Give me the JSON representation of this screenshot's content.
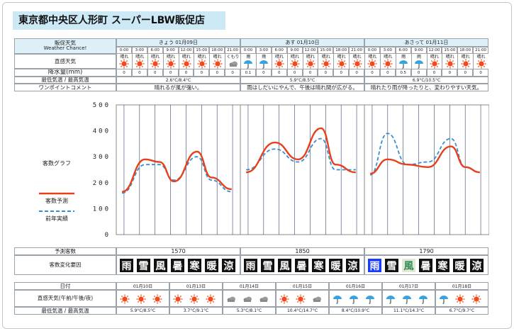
{
  "store_title": "東京都中央区人形町 スーパーLBW販促店",
  "labels": {
    "forecast": "販促天気",
    "forecast_en": "Weather Chance!",
    "sensible": "直感天気",
    "precip": "降水量(mm)",
    "temp": "最低気温 / 最高気温",
    "onepoint": "ワンポイントコメント",
    "visitors_graph": "客数グラフ",
    "legend_forecast": "客数予測",
    "legend_prev": "前年実績",
    "predicted": "予測客数",
    "factors": "客数変化要因",
    "date": "日付",
    "weekly_sensible": "直感天気(午前/午後/夜)",
    "weekly_temp": "最低気温 / 最高気温"
  },
  "days": [
    {
      "header": "きょう 01月09日",
      "times": [
        "0:00",
        "3:00",
        "6:00",
        "9:00",
        "12:00",
        "15:00",
        "18:00",
        "21:00"
      ],
      "weather": [
        "晴れ",
        "晴れ",
        "晴れ",
        "晴れ",
        "晴れ",
        "晴れ",
        "晴れ",
        "くもり"
      ],
      "icons": [
        "sun",
        "sun",
        "sun",
        "sun",
        "sun",
        "sun",
        "sun",
        "cloud"
      ],
      "precip": [
        "0",
        "0",
        "0",
        "0",
        "0",
        "0",
        "0",
        "0"
      ],
      "temp": "2.6°C/8.4°C",
      "comment": "晴れるが風が強い。",
      "predicted": "1570",
      "factors": [
        {
          "t": "雨",
          "c": "#111"
        },
        {
          "t": "雪",
          "c": "#111"
        },
        {
          "t": "風",
          "c": "#111"
        },
        {
          "t": "暑",
          "c": "#111"
        },
        {
          "t": "寒",
          "c": "#111"
        },
        {
          "t": "暖",
          "c": "#111"
        },
        {
          "t": "涼",
          "c": "#111"
        }
      ]
    },
    {
      "header": "あす 01月10日",
      "times": [
        "0:00",
        "3:00",
        "6:00",
        "9:00",
        "12:00",
        "15:00",
        "18:00",
        "21:00"
      ],
      "weather": [
        "雨",
        "雨",
        "晴れ",
        "晴れ",
        "晴れ",
        "晴れ",
        "晴れ",
        "晴れ"
      ],
      "icons": [
        "rain",
        "rain",
        "sun",
        "sun",
        "sun",
        "sun",
        "sun",
        "sun"
      ],
      "precip": [
        "0.1",
        "0",
        "0",
        "0",
        "0",
        "0",
        "0",
        "0"
      ],
      "temp": "5.9°C/8.5°C",
      "comment": "雨はしだいにやんで、午後は晴れ間が広がる。",
      "predicted": "1850",
      "factors": [
        {
          "t": "雨",
          "c": "#111"
        },
        {
          "t": "雪",
          "c": "#111"
        },
        {
          "t": "風",
          "c": "#111"
        },
        {
          "t": "暑",
          "c": "#111"
        },
        {
          "t": "寒",
          "c": "#111"
        },
        {
          "t": "暖",
          "c": "#111"
        },
        {
          "t": "涼",
          "c": "#111"
        }
      ]
    },
    {
      "header": "あさって 01月11日",
      "times": [
        "0:00",
        "3:00",
        "6:00",
        "9:00",
        "12:00",
        "15:00",
        "18:00",
        "21:00"
      ],
      "weather": [
        "晴れ",
        "晴れ",
        "雨",
        "雨",
        "晴れ",
        "晴れ",
        "晴れ",
        "晴れ"
      ],
      "icons": [
        "sun",
        "sun",
        "rain",
        "rain",
        "sun",
        "sun",
        "sun",
        "sun"
      ],
      "precip": [
        "0",
        "0",
        "0.5",
        "0",
        "0",
        "0",
        "0",
        "0"
      ],
      "temp": "6.9°C/10.5°C",
      "comment": "晴れたり雨が降ったりと、変わりやすい天気。",
      "predicted": "1790",
      "factors": [
        {
          "t": "雨",
          "c": "blue"
        },
        {
          "t": "雪",
          "c": "#111"
        },
        {
          "t": "風",
          "c": "green"
        },
        {
          "t": "暑",
          "c": "#111"
        },
        {
          "t": "寒",
          "c": "#111"
        },
        {
          "t": "暖",
          "c": "#111"
        },
        {
          "t": "涼",
          "c": "#111"
        }
      ]
    }
  ],
  "chart_data": {
    "type": "line",
    "y_ticks": [
      "500",
      "400",
      "300",
      "200",
      "100",
      "0"
    ],
    "ylim": [
      0,
      500
    ],
    "series": [
      {
        "name": "客数予測",
        "color": "#e8401c",
        "segments": [
          [
            [
              0.2,
              165
            ],
            [
              1.0,
              290
            ],
            [
              1.5,
              280
            ],
            [
              2.0,
              205
            ],
            [
              2.8,
              320
            ],
            [
              3.3,
              220
            ],
            [
              4.0,
              175
            ]
          ],
          [
            [
              0.2,
              240
            ],
            [
              1.2,
              355
            ],
            [
              2.0,
              290
            ],
            [
              2.8,
              410
            ],
            [
              3.3,
              270
            ],
            [
              4.0,
              240
            ]
          ],
          [
            [
              0.2,
              235
            ],
            [
              0.8,
              290
            ],
            [
              1.5,
              270
            ],
            [
              2.2,
              260
            ],
            [
              3.0,
              340
            ],
            [
              3.5,
              260
            ],
            [
              4.0,
              240
            ]
          ]
        ]
      },
      {
        "name": "前年実績",
        "color": "#3a8ed0",
        "segments": [
          [
            [
              0.2,
              160
            ],
            [
              1.0,
              270
            ],
            [
              1.5,
              270
            ],
            [
              2.0,
              210
            ],
            [
              2.8,
              300
            ],
            [
              3.3,
              210
            ],
            [
              4.0,
              165
            ]
          ],
          [
            [
              0.2,
              250
            ],
            [
              1.2,
              330
            ],
            [
              2.0,
              280
            ],
            [
              2.8,
              370
            ],
            [
              3.3,
              250
            ],
            [
              4.0,
              250
            ]
          ],
          [
            [
              0.2,
              230
            ],
            [
              0.8,
              390
            ],
            [
              1.5,
              270
            ],
            [
              2.2,
              280
            ],
            [
              3.0,
              370
            ],
            [
              3.5,
              260
            ],
            [
              4.0,
              240
            ]
          ]
        ]
      }
    ]
  },
  "weekly": [
    {
      "date": "01月10日",
      "icons": [
        "sun",
        "sun",
        "sun"
      ],
      "temp": "5.9°C/8.5°C"
    },
    {
      "date": "01月13日",
      "icons": [
        "sun",
        "sun",
        "sun"
      ],
      "temp": "3.7°C/9.1°C"
    },
    {
      "date": "01月14日",
      "icons": [
        "cloud",
        "cloud",
        "cloud"
      ],
      "temp": "5.3°C/8.1°C"
    },
    {
      "date": "01月15日",
      "icons": [
        "sun",
        "sun",
        "cloud"
      ],
      "temp": "10.4°C/14.7°C"
    },
    {
      "date": "01月16日",
      "icons": [
        "rain",
        "rain",
        "rain"
      ],
      "temp": "8.4°C/10.9°C"
    },
    {
      "date": "01月17日",
      "icons": [
        "rain",
        "rain",
        "rain"
      ],
      "temp": "11.1°C/14.3°C"
    },
    {
      "date": "01月18日",
      "icons": [
        "rain",
        "sun",
        "sun"
      ],
      "temp": "6.7°C/9.7°C"
    }
  ]
}
